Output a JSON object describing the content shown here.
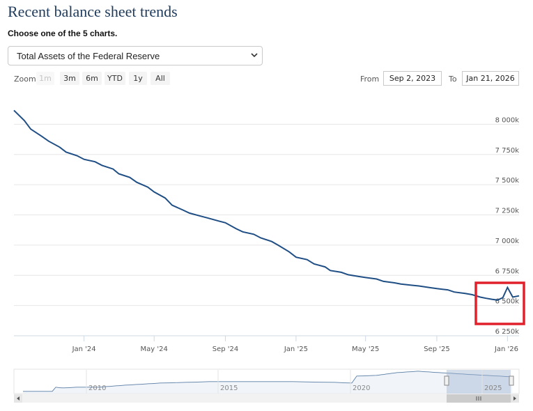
{
  "header": {
    "title": "Recent balance sheet trends",
    "subtitle": "Choose one of the 5 charts."
  },
  "selector": {
    "selected": "Total Assets of the Federal Reserve"
  },
  "zoom": {
    "label": "Zoom",
    "buttons": [
      "1m",
      "3m",
      "6m",
      "YTD",
      "1y",
      "All"
    ],
    "disabled": "1m"
  },
  "range": {
    "from_label": "From",
    "from_value": "Sep 2, 2023",
    "to_label": "To",
    "to_value": "Jan 21, 2026"
  },
  "highlight_color": "#e0202a",
  "line_color": "#1f4e84",
  "chart_data": {
    "type": "line",
    "title": "",
    "xlabel": "",
    "ylabel": "",
    "ylim": [
      6250,
      8250
    ],
    "x_ticks": [
      "Jan '24",
      "May '24",
      "Sep '24",
      "Jan '25",
      "May '25",
      "Sep '25",
      "Jan '26"
    ],
    "y_ticks": [
      "6 250k",
      "6 500k",
      "6 750k",
      "7 000k",
      "7 250k",
      "7 500k",
      "7 750k",
      "8 000k"
    ],
    "series": [
      {
        "x": [
          "2023-09-02",
          "2023-09-20",
          "2023-10-01",
          "2023-10-20",
          "2023-11-01",
          "2023-11-20",
          "2023-12-01",
          "2023-12-20",
          "2024-01-01",
          "2024-01-20",
          "2024-02-01",
          "2024-02-20",
          "2024-03-01",
          "2024-03-20",
          "2024-04-01",
          "2024-04-20",
          "2024-05-01",
          "2024-05-20",
          "2024-06-01",
          "2024-06-20",
          "2024-07-01",
          "2024-07-20",
          "2024-08-01",
          "2024-08-20",
          "2024-09-01",
          "2024-09-20",
          "2024-10-01",
          "2024-10-20",
          "2024-11-01",
          "2024-11-20",
          "2024-12-01",
          "2024-12-20",
          "2025-01-01",
          "2025-01-20",
          "2025-02-01",
          "2025-02-20",
          "2025-03-01",
          "2025-03-20",
          "2025-04-01",
          "2025-04-20",
          "2025-05-01",
          "2025-05-20",
          "2025-06-01",
          "2025-06-20",
          "2025-07-01",
          "2025-07-20",
          "2025-08-01",
          "2025-08-20",
          "2025-09-01",
          "2025-09-20",
          "2025-10-01",
          "2025-10-20",
          "2025-11-01",
          "2025-11-15",
          "2025-11-25",
          "2025-12-05",
          "2025-12-15",
          "2025-12-24",
          "2026-01-01",
          "2026-01-10",
          "2026-01-21"
        ],
        "values": [
          8115,
          8030,
          7960,
          7900,
          7860,
          7810,
          7770,
          7740,
          7710,
          7690,
          7660,
          7630,
          7590,
          7560,
          7520,
          7480,
          7440,
          7390,
          7330,
          7290,
          7265,
          7240,
          7225,
          7200,
          7185,
          7135,
          7110,
          7090,
          7060,
          7030,
          7000,
          6945,
          6900,
          6880,
          6845,
          6820,
          6790,
          6775,
          6755,
          6740,
          6732,
          6720,
          6700,
          6688,
          6678,
          6668,
          6662,
          6648,
          6640,
          6630,
          6612,
          6600,
          6590,
          6570,
          6560,
          6552,
          6545,
          6565,
          6650,
          6570,
          6580
        ]
      }
    ]
  },
  "navigator": {
    "years": [
      "2010",
      "2015",
      "2020",
      "2025"
    ]
  }
}
